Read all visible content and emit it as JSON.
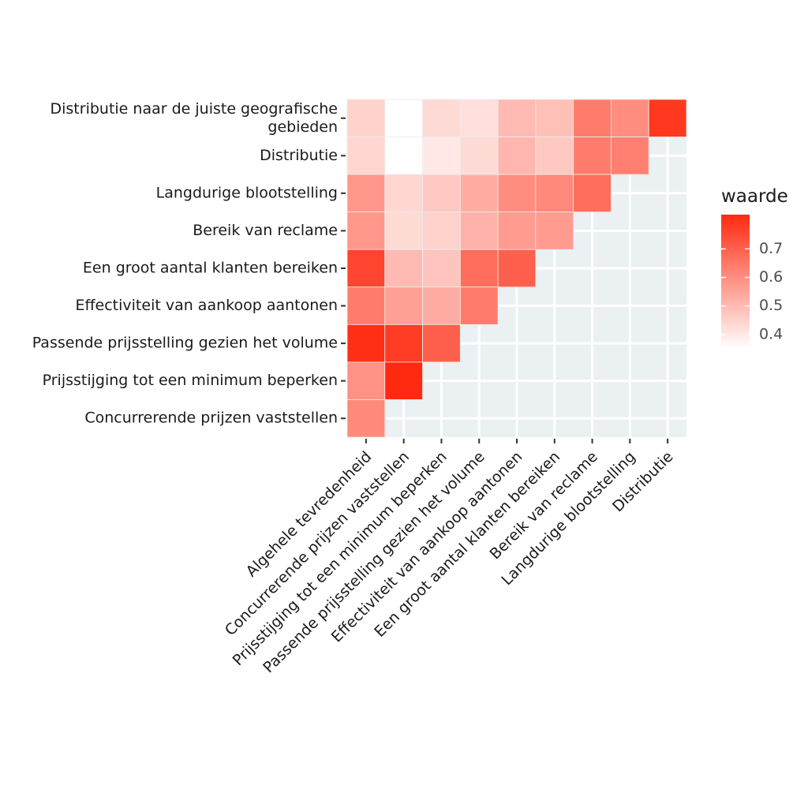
{
  "chart_data": {
    "type": "heatmap",
    "title": "",
    "xlabel": "",
    "ylabel": "",
    "x_categories": [
      "Algehele tevredenheid",
      "Concurrerende prijzen vaststellen",
      "Prijsstijging tot een minimum beperken",
      "Passende prijsstelling gezien het volume",
      "Effectiviteit van aankoop aantonen",
      "Een groot aantal klanten bereiken",
      "Bereik van reclame",
      "Langdurige blootstelling",
      "Distributie"
    ],
    "y_categories": [
      "Distributie naar de juiste geografische gebieden",
      "Distributie",
      "Langdurige blootstelling",
      "Bereik van reclame",
      "Een groot aantal klanten bereiken",
      "Effectiviteit van aankoop aantonen",
      "Passende prijsstelling gezien het volume",
      "Prijsstijging tot een minimum beperken",
      "Concurrerende prijzen vaststellen"
    ],
    "y_label_lines": [
      [
        "Distributie naar de juiste geografische",
        "gebieden"
      ],
      [
        "Distributie"
      ],
      [
        "Langdurige blootstelling"
      ],
      [
        "Bereik van reclame"
      ],
      [
        "Een groot aantal klanten bereiken"
      ],
      [
        "Effectiviteit van aankoop aantonen"
      ],
      [
        "Passende prijsstelling gezien het volume"
      ],
      [
        "Prijsstijging tot een minimum beperken"
      ],
      [
        "Concurrerende prijzen vaststellen"
      ]
    ],
    "values": [
      [
        0.45,
        0.35,
        0.43,
        0.42,
        0.5,
        0.49,
        0.64,
        0.6,
        0.79
      ],
      [
        0.44,
        0.35,
        0.4,
        0.43,
        0.51,
        0.47,
        0.64,
        0.63,
        null
      ],
      [
        0.58,
        0.44,
        0.47,
        0.53,
        0.6,
        0.61,
        0.67,
        null,
        null
      ],
      [
        0.58,
        0.43,
        0.45,
        0.52,
        0.57,
        0.57,
        null,
        null,
        null
      ],
      [
        0.76,
        0.5,
        0.48,
        0.67,
        0.7,
        null,
        null,
        null,
        null
      ],
      [
        0.64,
        0.56,
        0.53,
        0.64,
        null,
        null,
        null,
        null,
        null
      ],
      [
        0.81,
        0.78,
        0.7,
        null,
        null,
        null,
        null,
        null,
        null
      ],
      [
        0.59,
        0.82,
        null,
        null,
        null,
        null,
        null,
        null,
        null
      ],
      [
        0.61,
        null,
        null,
        null,
        null,
        null,
        null,
        null,
        null
      ]
    ],
    "value_range": [
      0.35,
      0.82
    ],
    "legend": {
      "title": "waarde",
      "ticks": [
        0.7,
        0.6,
        0.5,
        0.4
      ],
      "tick_labels": [
        "0.7",
        "0.6",
        "0.5",
        "0.4"
      ],
      "color_low": "#ffffff",
      "color_high": "#ff2a10",
      "placement": "right"
    },
    "panel_background": "#ebf0f3",
    "grid": true
  }
}
